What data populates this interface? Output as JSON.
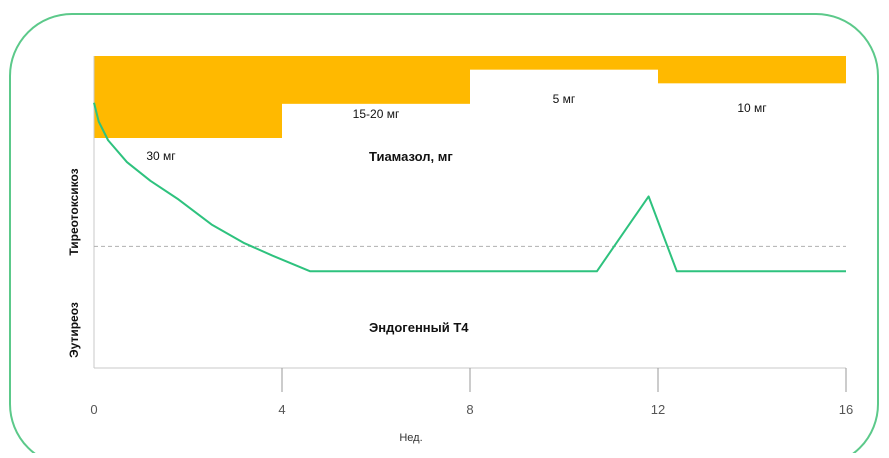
{
  "chart_data": {
    "type": "line",
    "title": "",
    "xlabel": "Нед.",
    "ylabel_regions": {
      "lower": "Эутиреоз",
      "upper": "Тиреотоксикоз"
    },
    "x_ticks": [
      0,
      4,
      8,
      12,
      16
    ],
    "xlim": [
      0,
      16
    ],
    "ylim": [
      0,
      100
    ],
    "threshold_line": {
      "y": 39,
      "style": "dashed"
    },
    "dose_series": {
      "name": "Тиамазол, мг",
      "color": "#ffb900",
      "segments": [
        {
          "x_start": 0,
          "x_end": 4,
          "label": "30 мг",
          "level": 30
        },
        {
          "x_start": 4,
          "x_end": 8,
          "label": "15-20 мг",
          "level": 17.5
        },
        {
          "x_start": 8,
          "x_end": 12,
          "label": "5 мг",
          "level": 5
        },
        {
          "x_start": 12,
          "x_end": 16,
          "label": "10 мг",
          "level": 10
        }
      ]
    },
    "hormone_series": {
      "name": "Эндогенный Т4",
      "color": "#2ec27e",
      "points": [
        [
          0,
          85
        ],
        [
          0.1,
          79
        ],
        [
          0.3,
          73
        ],
        [
          0.7,
          66
        ],
        [
          1.2,
          60
        ],
        [
          1.8,
          54
        ],
        [
          2.5,
          46
        ],
        [
          3.2,
          40
        ],
        [
          3.8,
          36
        ],
        [
          4.6,
          31
        ],
        [
          10.7,
          31
        ],
        [
          11.8,
          55
        ],
        [
          12.4,
          31
        ],
        [
          16,
          31
        ]
      ]
    },
    "frame_color": "#5cc98a"
  }
}
